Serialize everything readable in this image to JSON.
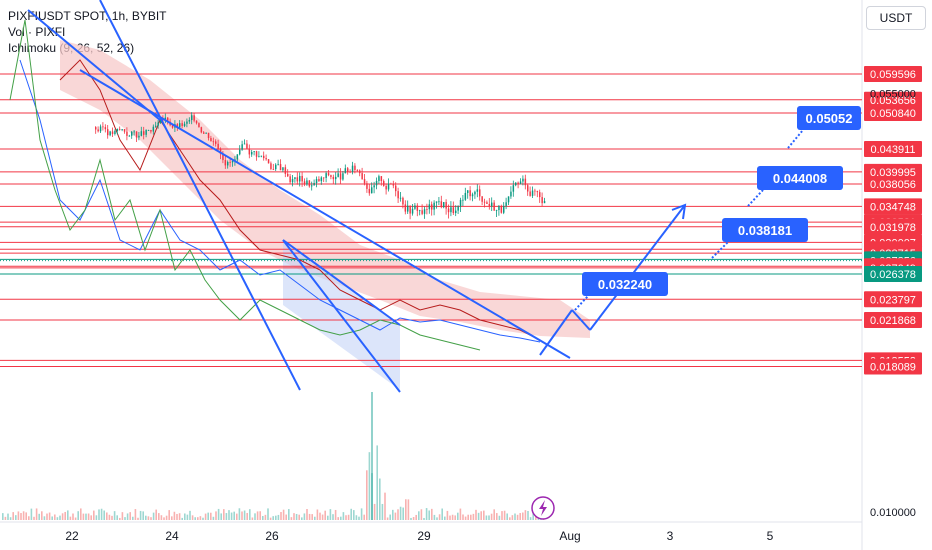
{
  "legend": {
    "symbol_line": "PIXFIUSDT SPOT, 1h, BYBIT",
    "volume_line": "Vol · PIXFI",
    "ichimoku_line": "Ichimoku (9, 26, 52, 26)"
  },
  "currency_button": "USDT",
  "colors": {
    "level_line": "#f23645",
    "price_line": "#089981",
    "trend_line": "#2962ff",
    "kijun": "#b71c1c",
    "tenkan": "#2962ff",
    "chikou": "#43a047",
    "cloud": "#f7c9c9",
    "channel_fill": "#c5d3f6"
  },
  "chart_data": {
    "type": "line",
    "title": "PIXFIUSDT SPOT, 1h, BYBIT",
    "x_tick_labels": [
      "22",
      "24",
      "26",
      "29",
      "Aug",
      "3",
      "5"
    ],
    "y_scale": "log",
    "ylim": [
      0.0095,
      0.066
    ],
    "y_tick_labels": [
      "0.055000",
      "0.010000"
    ],
    "price_levels": [
      {
        "value": 0.059596,
        "label": "0.059596",
        "style": "red"
      },
      {
        "value": 0.053656,
        "label": "0.053656",
        "style": "red"
      },
      {
        "value": 0.05084,
        "label": "0.050840",
        "style": "red"
      },
      {
        "value": 0.043911,
        "label": "0.043911",
        "style": "red"
      },
      {
        "value": 0.039995,
        "label": "0.039995",
        "style": "red"
      },
      {
        "value": 0.038056,
        "label": "0.038056",
        "style": "red"
      },
      {
        "value": 0.034748,
        "label": "0.034748",
        "style": "red"
      },
      {
        "value": 0.032581,
        "label": "0.032581",
        "style": "red"
      },
      {
        "value": 0.031978,
        "label": "0.031978",
        "style": "red"
      },
      {
        "value": 0.030007,
        "label": "0.030007",
        "style": "red"
      },
      {
        "value": 0.029178,
        "label": "0.029178",
        "style": "red"
      },
      {
        "value": 0.028715,
        "label": "0.028715",
        "style": "red"
      },
      {
        "value": 0.027996,
        "label": "0.027996",
        "style": "green"
      },
      {
        "value": 0.027856,
        "label": "0.027856",
        "style": "current"
      },
      {
        "value": 0.027218,
        "label": "0.027218",
        "style": "red"
      },
      {
        "value": 0.027049,
        "label": "0.027049",
        "style": "red"
      },
      {
        "value": 0.026378,
        "label": "0.026378",
        "style": "green"
      },
      {
        "value": 0.023797,
        "label": "0.023797",
        "style": "red"
      },
      {
        "value": 0.021868,
        "label": "0.021868",
        "style": "red"
      },
      {
        "value": 0.018552,
        "label": "0.018552",
        "style": "red"
      },
      {
        "value": 0.018089,
        "label": "0.018089",
        "style": "red"
      }
    ],
    "targets": [
      {
        "label": "0.032240",
        "value": 0.03224
      },
      {
        "label": "0.038181",
        "value": 0.038181
      },
      {
        "label": "0.044008",
        "value": 0.044008
      },
      {
        "label": "0.05052",
        "value": 0.05052
      }
    ],
    "grid": false
  }
}
